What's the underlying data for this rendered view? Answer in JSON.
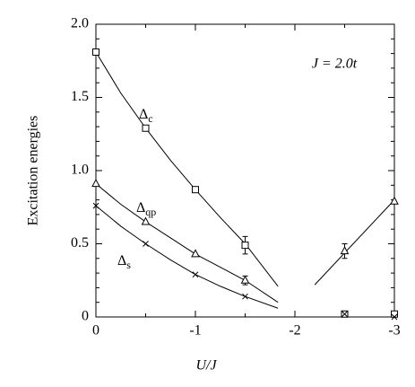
{
  "chart_data": {
    "type": "scatter",
    "xlabel": "U/J",
    "ylabel": "Excitation energies",
    "annotation": "J = 2.0t",
    "xlim": [
      0,
      -3
    ],
    "xticks": [
      0,
      -1,
      -2,
      -3
    ],
    "ylim": [
      0,
      2.0
    ],
    "yticks": [
      0,
      0.5,
      {
        "value": 1.0,
        "label": "1.0"
      },
      1.5,
      {
        "value": 2.0,
        "label": "2.0"
      }
    ],
    "series": [
      {
        "name": "Δc",
        "marker": "square",
        "x": [
          0,
          -0.5,
          -1,
          -1.5,
          -2.5,
          -3
        ],
        "values": [
          1.81,
          1.29,
          0.87,
          0.49,
          0.02,
          0.02
        ],
        "errors": [
          null,
          null,
          null,
          0.06,
          null,
          null
        ]
      },
      {
        "name": "Δqp",
        "marker": "triangle",
        "x": [
          0,
          -0.5,
          -1,
          -1.5,
          -2.5,
          -3
        ],
        "values": [
          0.91,
          0.65,
          0.43,
          0.25,
          0.45,
          0.79
        ],
        "errors": [
          null,
          null,
          null,
          0.03,
          0.05,
          null
        ]
      },
      {
        "name": "Δs",
        "marker": "cross",
        "x": [
          0,
          -0.5,
          -1,
          -1.5,
          -2.5,
          -3
        ],
        "values": [
          0.76,
          0.5,
          0.29,
          0.14,
          0.02,
          0.0
        ],
        "errors": [
          null,
          null,
          null,
          null,
          null,
          null
        ]
      }
    ],
    "lines": [
      {
        "x": [
          0,
          -0.25,
          -0.5,
          -0.75,
          -1,
          -1.25,
          -1.5,
          -1.83
        ],
        "values": [
          1.81,
          1.53,
          1.29,
          1.07,
          0.87,
          0.68,
          0.5,
          0.21
        ]
      },
      {
        "x": [
          0,
          -0.25,
          -0.5,
          -0.75,
          -1,
          -1.25,
          -1.5,
          -1.83
        ],
        "values": [
          0.91,
          0.77,
          0.65,
          0.54,
          0.43,
          0.34,
          0.25,
          0.1
        ]
      },
      {
        "x": [
          0,
          -0.25,
          -0.5,
          -0.75,
          -1,
          -1.25,
          -1.5,
          -1.83
        ],
        "values": [
          0.76,
          0.62,
          0.5,
          0.39,
          0.29,
          0.21,
          0.14,
          0.06
        ]
      },
      {
        "x": [
          -2.2,
          -3
        ],
        "values": [
          0.22,
          0.8
        ]
      }
    ],
    "color": "#000000"
  }
}
